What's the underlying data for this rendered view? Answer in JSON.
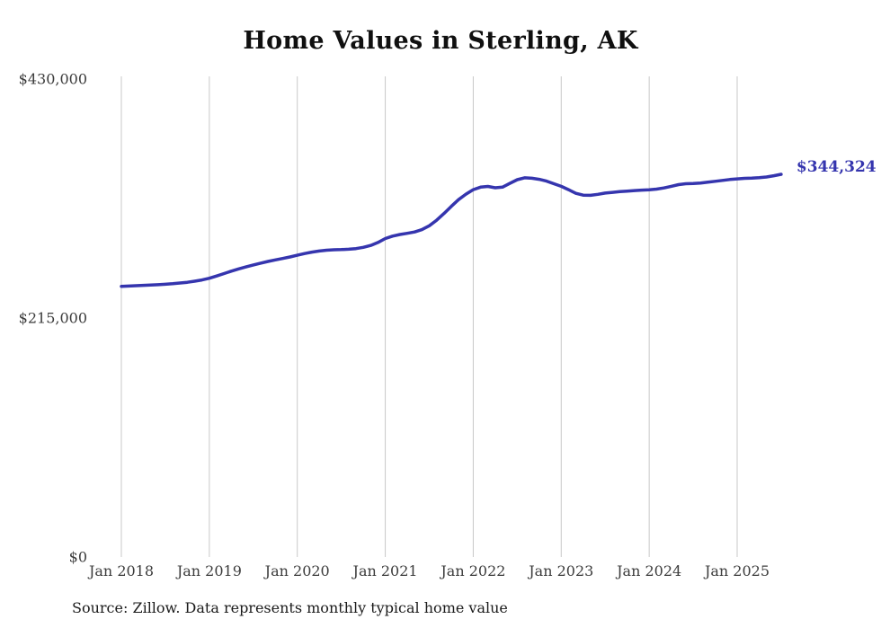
{
  "title": "Home Values in Sterling, AK",
  "source_note": "Source: Zillow. Data represents monthly typical home value",
  "colors": {
    "line": "#3535AE",
    "grid": "#C9C9C9",
    "axis_text": "#3C3C3C",
    "title_text": "#101010",
    "value_label": "#3535AE"
  },
  "chart_data": {
    "type": "line",
    "title": "Home Values in Sterling, AK",
    "series_name": "Monthly typical home value",
    "x_start": "Jan 2018",
    "x_frequency": "monthly",
    "xticks": [
      "Jan 2018",
      "Jan 2019",
      "Jan 2020",
      "Jan 2021",
      "Jan 2022",
      "Jan 2023",
      "Jan 2024",
      "Jan 2025"
    ],
    "yticks": [
      {
        "value": 430000,
        "label": "$430,000"
      },
      {
        "value": 215000,
        "label": "$215,000"
      },
      {
        "value": 0,
        "label": "$0"
      }
    ],
    "ylim": [
      0,
      430000
    ],
    "grid": "vertical",
    "legend": "none",
    "last_value": 344324,
    "last_value_label": "$344,324",
    "values": [
      243500,
      243800,
      244100,
      244400,
      244700,
      245000,
      245400,
      245900,
      246500,
      247200,
      248100,
      249300,
      250800,
      252800,
      255000,
      257200,
      259200,
      261000,
      262800,
      264400,
      265900,
      267300,
      268600,
      270000,
      271500,
      273000,
      274300,
      275300,
      276000,
      276400,
      276600,
      276900,
      277500,
      278600,
      280300,
      283000,
      286500,
      288700,
      290200,
      291200,
      292400,
      294500,
      298000,
      303000,
      309000,
      315500,
      321500,
      326500,
      330500,
      332800,
      333400,
      332200,
      332800,
      336200,
      339500,
      341200,
      340800,
      339800,
      338200,
      335800,
      333500,
      330500,
      327200,
      325600,
      325400,
      326300,
      327400,
      328100,
      328700,
      329200,
      329700,
      330100,
      330400,
      331000,
      332000,
      333500,
      335000,
      335800,
      336100,
      336500,
      337200,
      338000,
      338800,
      339600,
      340200,
      340700,
      340900,
      341300,
      341900,
      343000,
      344324
    ]
  }
}
